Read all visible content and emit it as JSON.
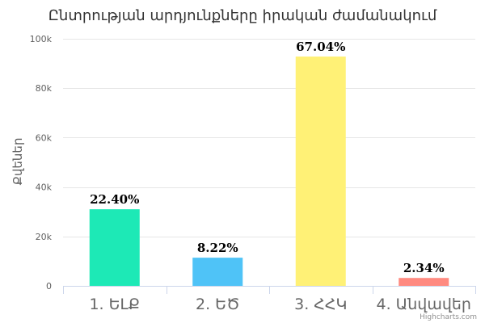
{
  "chart_data": {
    "type": "bar",
    "title": "Ընտրության արդյունքները իրական ժամանակում",
    "ylabel": "Քվեներ",
    "xlabel": "",
    "ylim": [
      0,
      100000
    ],
    "yticks": [
      0,
      20000,
      40000,
      60000,
      80000,
      100000
    ],
    "ytick_labels": [
      "0",
      "20k",
      "40k",
      "60k",
      "80k",
      "100k"
    ],
    "grid": true,
    "categories": [
      "1. ԵԼՔ",
      "2. ԵԾ",
      "3. ՀՀԿ",
      "4. Անվավեր"
    ],
    "values": [
      31000,
      11400,
      92800,
      3200
    ],
    "data_labels": [
      "22.40%",
      "8.22%",
      "67.04%",
      "2.34%"
    ],
    "colors": [
      "#1de9b6",
      "#4fc3f7",
      "#fff176",
      "#ff8a80"
    ]
  },
  "credit": "Highcharts.com"
}
